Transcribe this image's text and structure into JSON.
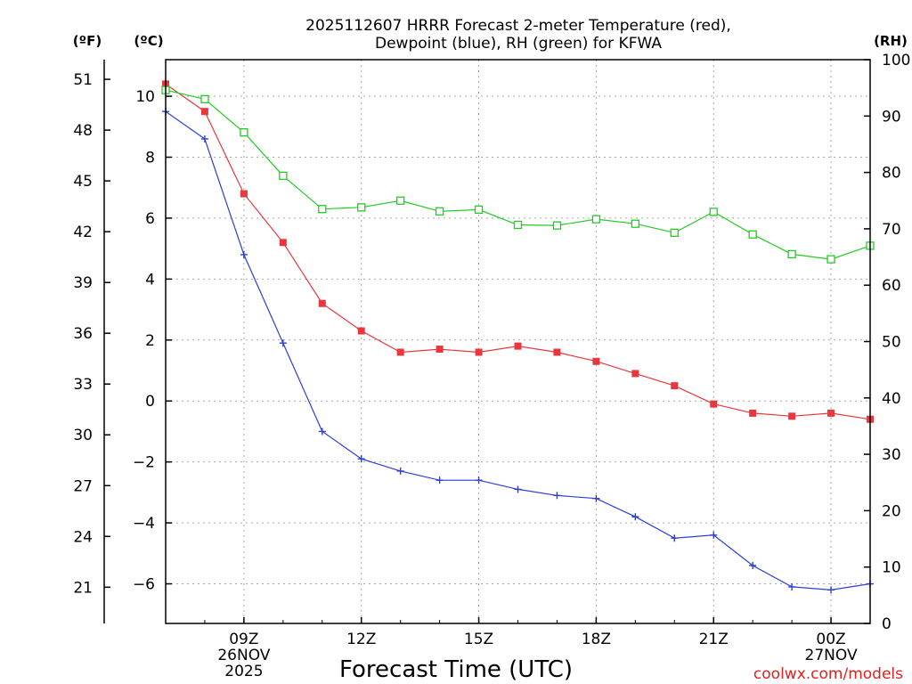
{
  "chart_data": {
    "type": "line",
    "title_lines": [
      "2025112607 HRRR Forecast 2-meter Temperature (red),",
      "Dewpoint (blue), RH (green) for KFWA"
    ],
    "xlabel": "Forecast Time (UTC)",
    "credit": "coolwx.com/models",
    "unit_labels": {
      "fahrenheit": "(ºF)",
      "celsius": "(ºC)",
      "rh": "(RH)"
    },
    "x_hours": [
      7,
      8,
      9,
      10,
      11,
      12,
      13,
      14,
      15,
      16,
      17,
      18,
      19,
      20,
      21,
      22,
      23,
      24,
      25
    ],
    "x_range": [
      7,
      25
    ],
    "x_ticks": [
      {
        "hour": 9,
        "lines": [
          "09Z",
          "26NOV",
          "2025"
        ]
      },
      {
        "hour": 12,
        "lines": [
          "12Z"
        ]
      },
      {
        "hour": 15,
        "lines": [
          "15Z"
        ]
      },
      {
        "hour": 18,
        "lines": [
          "18Z"
        ]
      },
      {
        "hour": 21,
        "lines": [
          "21Z"
        ]
      },
      {
        "hour": 24,
        "lines": [
          "00Z",
          "27NOV"
        ]
      }
    ],
    "celsius_range": [
      -7.3,
      11.2
    ],
    "celsius_ticks": [
      10,
      8,
      6,
      4,
      2,
      0,
      -2,
      -4,
      -6
    ],
    "fahrenheit_ticks": [
      51,
      48,
      45,
      42,
      39,
      36,
      33,
      30,
      27,
      24,
      21
    ],
    "rh_range": [
      0,
      100
    ],
    "rh_ticks": [
      100,
      90,
      80,
      70,
      60,
      50,
      40,
      30,
      20,
      10,
      0
    ],
    "series": [
      {
        "name": "2-meter Temperature",
        "units": "C",
        "color": "#e8383d",
        "marker": "filled-square",
        "values": [
          10.4,
          9.5,
          6.8,
          5.2,
          3.2,
          2.3,
          1.6,
          1.7,
          1.6,
          1.8,
          1.6,
          1.3,
          0.9,
          0.5,
          -0.1,
          -0.4,
          -0.5,
          -0.4,
          -0.6
        ]
      },
      {
        "name": "Dewpoint",
        "units": "C",
        "color": "#2b3fd6",
        "marker": "plus",
        "values": [
          9.5,
          8.6,
          4.8,
          1.9,
          -1.0,
          -1.9,
          -2.3,
          -2.6,
          -2.6,
          -2.9,
          -3.1,
          -3.2,
          -3.8,
          -4.5,
          -4.4,
          -5.4,
          -6.1,
          -6.2,
          -6.0
        ]
      },
      {
        "name": "Relative Humidity",
        "units": "%",
        "color": "#22cc22",
        "marker": "open-square",
        "values": [
          94.6,
          93.0,
          87.1,
          79.4,
          73.5,
          73.8,
          75.0,
          73.1,
          73.4,
          70.7,
          70.6,
          71.7,
          70.9,
          69.3,
          73.0,
          69.0,
          65.5,
          64.6,
          67.0
        ]
      }
    ]
  }
}
